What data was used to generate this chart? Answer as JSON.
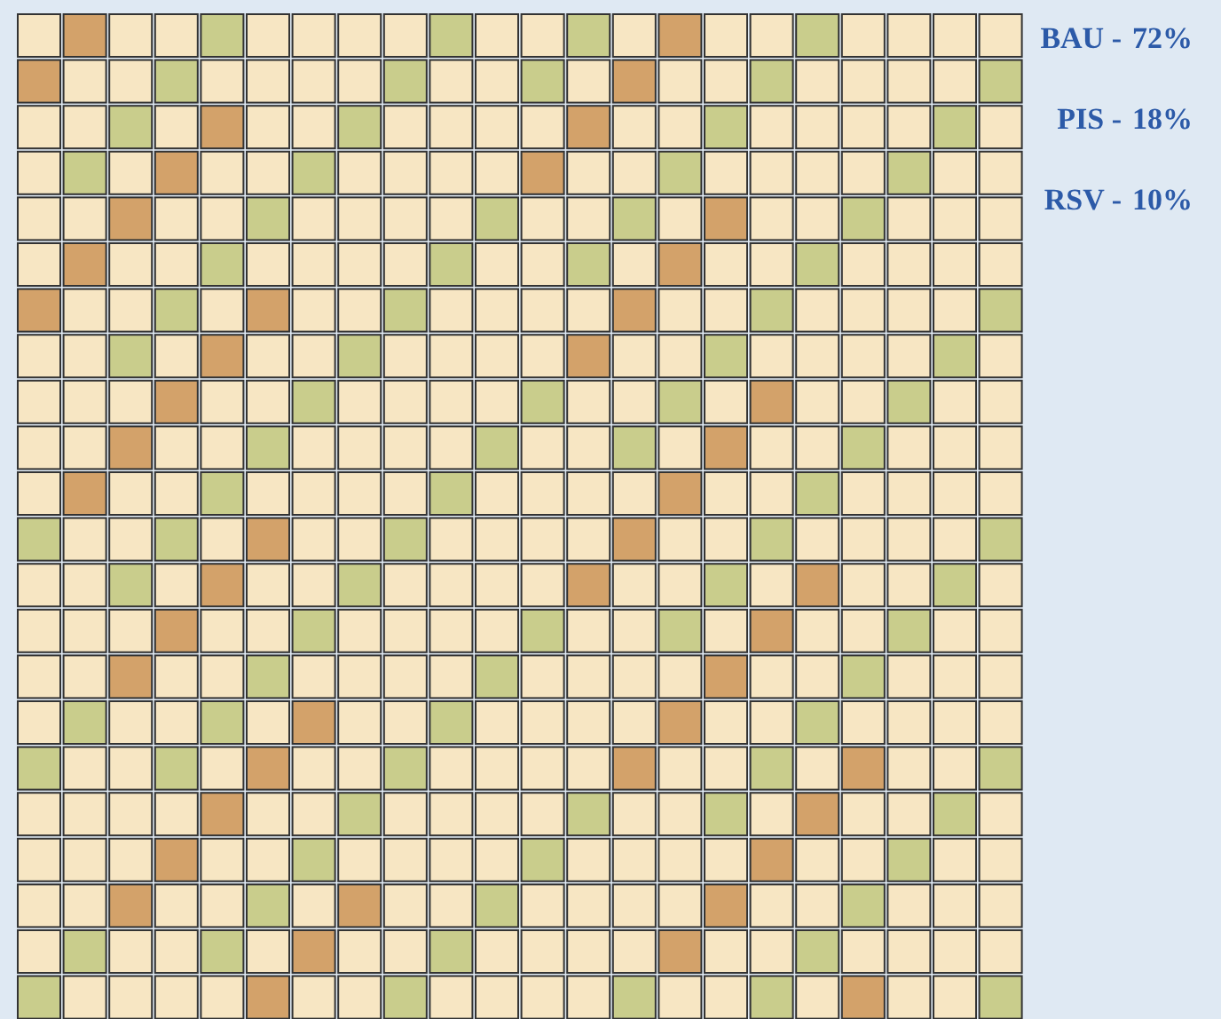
{
  "chart_data": {
    "type": "other",
    "categories": [
      "BAU -",
      "PIS -",
      "RSV -"
    ],
    "values": [
      72,
      18,
      10
    ],
    "data_labels": true,
    "value_labels": [
      "72%",
      "18%",
      "10%"
    ],
    "colors": [
      "#f7e6c3",
      "#c9cd8c",
      "#d3a26a"
    ]
  }
}
